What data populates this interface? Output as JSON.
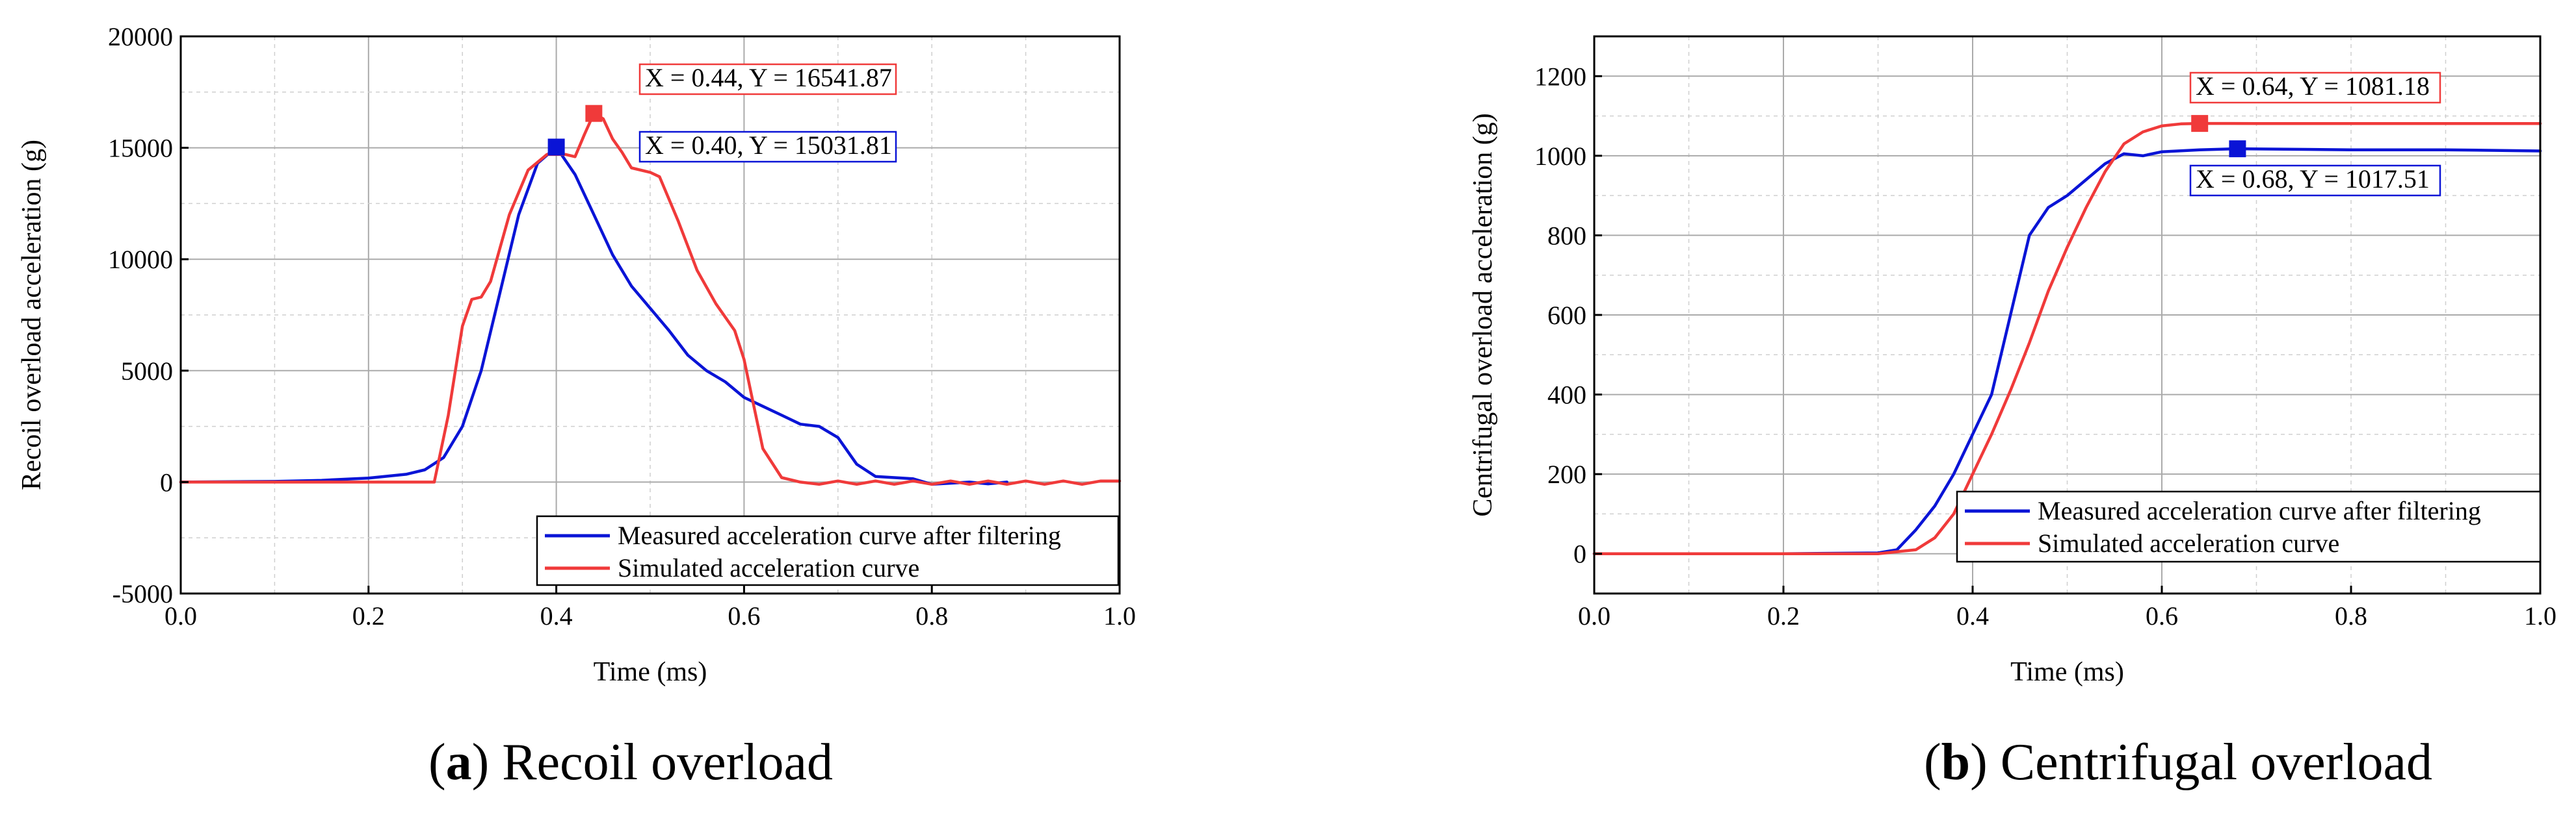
{
  "colors": {
    "measured": "#0a14d6",
    "simulated": "#f03a3a",
    "grid": "#bdbdbd"
  },
  "chart_data": [
    {
      "type": "line",
      "caption_letter": "a",
      "caption_text": "Recoil overload",
      "xlabel": "Time (ms)",
      "ylabel": "Recoil overload acceleration (g)",
      "xlim": [
        0.0,
        1.0
      ],
      "ylim": [
        -5000,
        20000
      ],
      "xticks": [
        "0.0",
        "0.2",
        "0.4",
        "0.6",
        "0.8",
        "1.0"
      ],
      "yticks": [
        "-5000",
        "0",
        "5000",
        "10000",
        "15000",
        "20000"
      ],
      "grid": true,
      "legend_position": "bottom-right",
      "series": [
        {
          "name": "Measured acceleration curve after filtering",
          "color": "#0a14d6",
          "points": [
            [
              0.0,
              0
            ],
            [
              0.1,
              30
            ],
            [
              0.15,
              80
            ],
            [
              0.2,
              180
            ],
            [
              0.24,
              350
            ],
            [
              0.26,
              550
            ],
            [
              0.28,
              1100
            ],
            [
              0.3,
              2500
            ],
            [
              0.32,
              5000
            ],
            [
              0.34,
              8500
            ],
            [
              0.36,
              12000
            ],
            [
              0.38,
              14300
            ],
            [
              0.4,
              15031.81
            ],
            [
              0.42,
              13800
            ],
            [
              0.44,
              12000
            ],
            [
              0.46,
              10200
            ],
            [
              0.48,
              8800
            ],
            [
              0.5,
              7800
            ],
            [
              0.52,
              6800
            ],
            [
              0.54,
              5700
            ],
            [
              0.56,
              5000
            ],
            [
              0.58,
              4500
            ],
            [
              0.6,
              3800
            ],
            [
              0.62,
              3400
            ],
            [
              0.64,
              3000
            ],
            [
              0.66,
              2600
            ],
            [
              0.68,
              2500
            ],
            [
              0.7,
              2000
            ],
            [
              0.72,
              800
            ],
            [
              0.74,
              250
            ],
            [
              0.76,
              200
            ],
            [
              0.78,
              150
            ],
            [
              0.8,
              -100
            ],
            [
              0.82,
              -50
            ],
            [
              0.84,
              0
            ],
            [
              0.86,
              -80
            ],
            [
              0.88,
              0
            ]
          ]
        },
        {
          "name": "Simulated acceleration curve",
          "color": "#f03a3a",
          "points": [
            [
              0.0,
              0
            ],
            [
              0.1,
              0
            ],
            [
              0.2,
              0
            ],
            [
              0.27,
              0
            ],
            [
              0.285,
              3000
            ],
            [
              0.3,
              7000
            ],
            [
              0.31,
              8200
            ],
            [
              0.32,
              8300
            ],
            [
              0.33,
              9000
            ],
            [
              0.35,
              12000
            ],
            [
              0.37,
              14000
            ],
            [
              0.39,
              14700
            ],
            [
              0.41,
              14700
            ],
            [
              0.42,
              14600
            ],
            [
              0.43,
              15600
            ],
            [
              0.44,
              16541.87
            ],
            [
              0.45,
              16300
            ],
            [
              0.46,
              15400
            ],
            [
              0.47,
              14800
            ],
            [
              0.48,
              14100
            ],
            [
              0.5,
              13900
            ],
            [
              0.51,
              13700
            ],
            [
              0.53,
              11700
            ],
            [
              0.55,
              9500
            ],
            [
              0.57,
              8000
            ],
            [
              0.59,
              6800
            ],
            [
              0.6,
              5500
            ],
            [
              0.61,
              3500
            ],
            [
              0.62,
              1500
            ],
            [
              0.64,
              200
            ],
            [
              0.66,
              0
            ],
            [
              0.68,
              -100
            ],
            [
              0.7,
              50
            ],
            [
              0.72,
              -100
            ],
            [
              0.74,
              50
            ],
            [
              0.76,
              -100
            ],
            [
              0.78,
              50
            ],
            [
              0.8,
              -100
            ],
            [
              0.82,
              50
            ],
            [
              0.84,
              -100
            ],
            [
              0.86,
              50
            ],
            [
              0.88,
              -100
            ],
            [
              0.9,
              50
            ],
            [
              0.92,
              -100
            ],
            [
              0.94,
              50
            ],
            [
              0.96,
              -100
            ],
            [
              0.98,
              50
            ],
            [
              1.0,
              50
            ]
          ]
        }
      ],
      "annotations": [
        {
          "text": "X = 0.44, Y = 16541.87",
          "x": 0.44,
          "y": 16541.87,
          "color": "#f03a3a"
        },
        {
          "text": "X = 0.40, Y = 15031.81",
          "x": 0.4,
          "y": 15031.81,
          "color": "#0a14d6"
        }
      ]
    },
    {
      "type": "line",
      "caption_letter": "b",
      "caption_text": "Centrifugal overload",
      "xlabel": "Time (ms)",
      "ylabel": "Centrifugal overload acceleration (g)",
      "xlim": [
        0.0,
        1.0
      ],
      "ylim": [
        -100,
        1300
      ],
      "xticks": [
        "0.0",
        "0.2",
        "0.4",
        "0.6",
        "0.8",
        "1.0"
      ],
      "yticks": [
        "0",
        "200",
        "400",
        "600",
        "800",
        "1000",
        "1200"
      ],
      "grid": true,
      "legend_position": "bottom-right",
      "series": [
        {
          "name": "Measured acceleration curve after filtering",
          "color": "#0a14d6",
          "points": [
            [
              0.0,
              0
            ],
            [
              0.1,
              0
            ],
            [
              0.2,
              0
            ],
            [
              0.3,
              2
            ],
            [
              0.32,
              10
            ],
            [
              0.34,
              60
            ],
            [
              0.36,
              120
            ],
            [
              0.38,
              200
            ],
            [
              0.4,
              300
            ],
            [
              0.42,
              400
            ],
            [
              0.44,
              600
            ],
            [
              0.46,
              800
            ],
            [
              0.48,
              870
            ],
            [
              0.5,
              900
            ],
            [
              0.52,
              940
            ],
            [
              0.54,
              980
            ],
            [
              0.56,
              1005
            ],
            [
              0.58,
              1000
            ],
            [
              0.6,
              1010
            ],
            [
              0.64,
              1015
            ],
            [
              0.68,
              1017.51
            ],
            [
              0.8,
              1015
            ],
            [
              0.9,
              1015
            ],
            [
              1.0,
              1012
            ]
          ]
        },
        {
          "name": "Simulated acceleration curve",
          "color": "#f03a3a",
          "points": [
            [
              0.0,
              0
            ],
            [
              0.1,
              0
            ],
            [
              0.2,
              0
            ],
            [
              0.3,
              0
            ],
            [
              0.34,
              10
            ],
            [
              0.36,
              40
            ],
            [
              0.38,
              100
            ],
            [
              0.4,
              200
            ],
            [
              0.42,
              300
            ],
            [
              0.44,
              410
            ],
            [
              0.46,
              530
            ],
            [
              0.48,
              660
            ],
            [
              0.5,
              770
            ],
            [
              0.52,
              870
            ],
            [
              0.54,
              960
            ],
            [
              0.56,
              1030
            ],
            [
              0.58,
              1060
            ],
            [
              0.6,
              1075
            ],
            [
              0.62,
              1080
            ],
            [
              0.64,
              1081.18
            ],
            [
              0.7,
              1081
            ],
            [
              0.8,
              1081
            ],
            [
              0.9,
              1081
            ],
            [
              1.0,
              1081
            ]
          ]
        }
      ],
      "annotations": [
        {
          "text": "X = 0.64, Y = 1081.18",
          "x": 0.64,
          "y": 1081.18,
          "color": "#f03a3a"
        },
        {
          "text": "X = 0.68, Y = 1017.51",
          "x": 0.68,
          "y": 1017.51,
          "color": "#0a14d6"
        }
      ]
    }
  ]
}
